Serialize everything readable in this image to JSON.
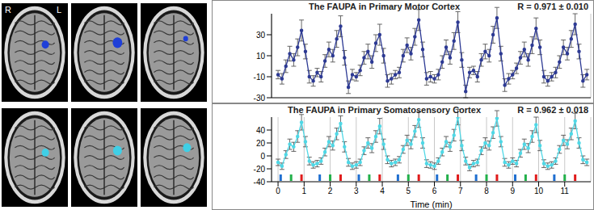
{
  "brain_images": {
    "labels": {
      "right": "R",
      "left": "L"
    },
    "rows": [
      {
        "color": "#1f3fd8"
      },
      {
        "color": "#3fcfe6"
      }
    ]
  },
  "chart_data": [
    {
      "type": "line",
      "title": "The FAUPA in Primary Motor Cortex",
      "annotation": "R = 0.971 ± 0.010",
      "x": [
        0,
        0.15,
        0.3,
        0.45,
        0.6,
        0.75,
        0.9,
        1.05,
        1.2,
        1.35,
        1.5,
        1.65,
        1.8,
        1.95,
        2.1,
        2.25,
        2.4,
        2.55,
        2.7,
        2.85,
        3,
        3.15,
        3.3,
        3.45,
        3.6,
        3.75,
        3.9,
        4.05,
        4.2,
        4.35,
        4.5,
        4.65,
        4.8,
        4.95,
        5.1,
        5.25,
        5.4,
        5.55,
        5.7,
        5.85,
        6,
        6.15,
        6.3,
        6.45,
        6.6,
        6.75,
        6.9,
        7.05,
        7.2,
        7.35,
        7.5,
        7.65,
        7.8,
        7.95,
        8.1,
        8.25,
        8.4,
        8.55,
        8.7,
        8.85,
        9,
        9.15,
        9.3,
        9.45,
        9.6,
        9.75,
        9.9,
        10.05,
        10.2,
        10.35,
        10.5,
        10.65,
        10.8,
        10.95,
        11.1,
        11.25,
        11.4,
        11.55,
        11.7,
        11.85
      ],
      "series": [
        {
          "color": "#2d3a94",
          "marker": "circle",
          "values": [
            -8,
            -12,
            0,
            12,
            6,
            18,
            34,
            14,
            -10,
            -14,
            -6,
            -10,
            5,
            16,
            10,
            26,
            38,
            8,
            -20,
            -8,
            -10,
            -4,
            8,
            14,
            4,
            22,
            30,
            10,
            -14,
            -12,
            -8,
            -6,
            10,
            20,
            12,
            28,
            44,
            16,
            -12,
            -10,
            -12,
            -8,
            4,
            18,
            8,
            24,
            42,
            6,
            -24,
            -6,
            -4,
            -10,
            6,
            14,
            10,
            30,
            46,
            12,
            -18,
            -12,
            -8,
            -2,
            8,
            16,
            6,
            20,
            36,
            18,
            -10,
            -14,
            -10,
            -6,
            4,
            18,
            12,
            26,
            40,
            14,
            -14,
            -8
          ],
          "errors": [
            4,
            5,
            6,
            7,
            6,
            8,
            10,
            7,
            6,
            5,
            4,
            5,
            6,
            7,
            6,
            8,
            10,
            7,
            6,
            5,
            4,
            5,
            6,
            7,
            6,
            8,
            10,
            7,
            6,
            5,
            4,
            5,
            6,
            7,
            6,
            8,
            10,
            7,
            6,
            5,
            4,
            5,
            6,
            7,
            6,
            8,
            10,
            7,
            6,
            5,
            4,
            5,
            6,
            7,
            6,
            8,
            10,
            7,
            6,
            5,
            4,
            5,
            6,
            7,
            6,
            8,
            10,
            7,
            6,
            5,
            4,
            5,
            6,
            7,
            6,
            8,
            10,
            7,
            6,
            5
          ]
        }
      ],
      "xlim": [
        -0.25,
        12
      ],
      "xticks": [
        0,
        1,
        2,
        3,
        4,
        5,
        6,
        7,
        8,
        9,
        10,
        11
      ],
      "ylim": [
        -30,
        50
      ],
      "yticks": [
        -30,
        -10,
        10,
        30
      ],
      "grid": true,
      "tick_labels": "y"
    },
    {
      "type": "line",
      "title": "The FAUPA in Primary Somatosensory Cortex",
      "annotation": "R = 0.962 ± 0.018",
      "x_label": "Time (min)",
      "x": [
        0,
        0.15,
        0.3,
        0.45,
        0.6,
        0.75,
        0.9,
        1.05,
        1.2,
        1.35,
        1.5,
        1.65,
        1.8,
        1.95,
        2.1,
        2.25,
        2.4,
        2.55,
        2.7,
        2.85,
        3,
        3.15,
        3.3,
        3.45,
        3.6,
        3.75,
        3.9,
        4.05,
        4.2,
        4.35,
        4.5,
        4.65,
        4.8,
        4.95,
        5.1,
        5.25,
        5.4,
        5.55,
        5.7,
        5.85,
        6,
        6.15,
        6.3,
        6.45,
        6.6,
        6.75,
        6.9,
        7.05,
        7.2,
        7.35,
        7.5,
        7.65,
        7.8,
        7.95,
        8.1,
        8.25,
        8.4,
        8.55,
        8.7,
        8.85,
        9,
        9.15,
        9.3,
        9.45,
        9.6,
        9.75,
        9.9,
        10.05,
        10.2,
        10.35,
        10.5,
        10.65,
        10.8,
        10.95,
        11.1,
        11.25,
        11.4,
        11.55,
        11.7,
        11.85
      ],
      "series": [
        {
          "color": "#4fd8e6",
          "marker": "circle",
          "values": [
            -10,
            -16,
            2,
            18,
            14,
            30,
            52,
            22,
            -8,
            -14,
            -12,
            -8,
            6,
            22,
            16,
            34,
            50,
            14,
            -10,
            -16,
            -14,
            -10,
            8,
            20,
            12,
            30,
            46,
            18,
            -6,
            -12,
            -10,
            -6,
            10,
            24,
            18,
            38,
            56,
            20,
            -12,
            -14,
            -16,
            -8,
            6,
            22,
            14,
            32,
            60,
            16,
            -8,
            -18,
            -12,
            -10,
            8,
            20,
            16,
            36,
            58,
            22,
            -10,
            -14,
            -8,
            -12,
            4,
            18,
            12,
            30,
            48,
            16,
            -12,
            -16,
            -14,
            -8,
            10,
            24,
            18,
            34,
            54,
            20,
            -6,
            -10
          ],
          "errors": [
            5,
            5,
            6,
            8,
            7,
            9,
            12,
            8,
            6,
            5,
            5,
            5,
            6,
            8,
            7,
            9,
            12,
            8,
            6,
            5,
            5,
            5,
            6,
            8,
            7,
            9,
            12,
            8,
            6,
            5,
            5,
            5,
            6,
            8,
            7,
            9,
            12,
            8,
            6,
            5,
            5,
            5,
            6,
            8,
            7,
            9,
            12,
            8,
            6,
            5,
            5,
            5,
            6,
            8,
            7,
            9,
            12,
            8,
            6,
            5,
            5,
            5,
            6,
            8,
            7,
            9,
            12,
            8,
            6,
            5,
            5,
            5,
            6,
            8,
            7,
            9,
            12,
            8,
            6,
            5
          ]
        }
      ],
      "events": [
        {
          "color": "#1f6fd0",
          "x": [
            0.1,
            1.6,
            3.1,
            4.6,
            6.1,
            7.6,
            9.1,
            10.6
          ]
        },
        {
          "color": "#22b04a",
          "x": [
            0.5,
            2,
            3.5,
            5,
            6.5,
            8,
            9.5,
            11
          ]
        },
        {
          "color": "#e01b1b",
          "x": [
            0.9,
            2.4,
            3.9,
            5.4,
            6.9,
            8.4,
            9.9,
            11.4
          ]
        }
      ],
      "xlim": [
        -0.25,
        12
      ],
      "xticks": [
        0,
        1,
        2,
        3,
        4,
        5,
        6,
        7,
        8,
        9,
        10,
        11
      ],
      "ylim": [
        -40,
        60
      ],
      "yticks": [
        -40,
        -20,
        0,
        20,
        40
      ],
      "grid": true
    }
  ]
}
